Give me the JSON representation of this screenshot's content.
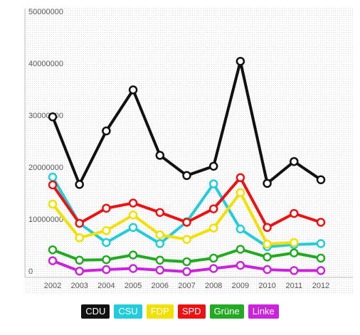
{
  "chart_data": {
    "type": "line",
    "title": "",
    "xlabel": "",
    "ylabel": "",
    "x": [
      "2002",
      "2003",
      "2004",
      "2005",
      "2006",
      "2007",
      "2008",
      "2009",
      "2010",
      "2011",
      "2012"
    ],
    "ylim": [
      0,
      50000000
    ],
    "yticks": [
      "0",
      "10000000",
      "20000000",
      "30000000",
      "40000000",
      "50000000"
    ],
    "grid": true,
    "legend_position": "bottom",
    "series": [
      {
        "name": "CDU",
        "color": "#111111",
        "values": [
          30500000,
          17500000,
          27800000,
          35700000,
          23100000,
          19200000,
          21000000,
          41200000,
          17700000,
          21900000,
          18400000
        ]
      },
      {
        "name": "CSU",
        "color": "#22ccdd",
        "values": [
          18900000,
          10000000,
          6300000,
          9200000,
          6100000,
          10300000,
          17600000,
          8900000,
          5500000,
          5900000,
          6100000
        ]
      },
      {
        "name": "FDP",
        "color": "#f2e000",
        "values": [
          13700000,
          7200000,
          8600000,
          11600000,
          7800000,
          6900000,
          9100000,
          15900000,
          6000000,
          6300000,
          null
        ]
      },
      {
        "name": "SPD",
        "color": "#ee1111",
        "values": [
          17400000,
          10000000,
          12900000,
          13900000,
          12100000,
          10200000,
          12800000,
          18800000,
          9200000,
          11900000,
          10200000
        ]
      },
      {
        "name": "Grüne",
        "color": "#22aa22",
        "values": [
          4900000,
          2900000,
          3000000,
          3900000,
          2900000,
          2600000,
          3300000,
          5000000,
          3500000,
          4300000,
          3300000
        ]
      },
      {
        "name": "Linke",
        "color": "#cc22dd",
        "values": [
          2800000,
          800000,
          1100000,
          1300000,
          1000000,
          700000,
          1300000,
          1900000,
          1100000,
          900000,
          900000
        ]
      }
    ]
  }
}
